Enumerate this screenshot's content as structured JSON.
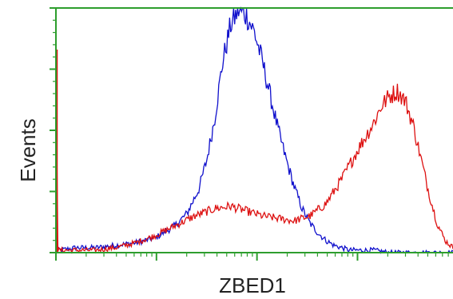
{
  "chart_data": {
    "type": "line",
    "title": "",
    "xlabel": "ZBED1",
    "ylabel": "Events",
    "x_scale": "log",
    "xlim": [
      0,
      1
    ],
    "ylim": [
      0,
      1
    ],
    "grid": false,
    "legend": "none",
    "axis_color": "#2e9e2e",
    "series": [
      {
        "color": "#1010cc",
        "x": [
          0.01,
          0.05,
          0.1,
          0.15,
          0.2,
          0.25,
          0.3,
          0.33,
          0.36,
          0.38,
          0.4,
          0.42,
          0.44,
          0.46,
          0.48,
          0.5,
          0.52,
          0.54,
          0.56,
          0.58,
          0.6,
          0.62,
          0.64,
          0.66,
          0.68,
          0.7,
          0.72,
          0.74,
          0.76,
          0.78,
          0.8,
          0.84,
          0.88,
          0.92,
          0.96,
          1.0
        ],
        "y": [
          0.01,
          0.02,
          0.02,
          0.03,
          0.04,
          0.06,
          0.11,
          0.16,
          0.26,
          0.38,
          0.55,
          0.78,
          0.93,
          0.99,
          0.97,
          0.9,
          0.78,
          0.64,
          0.5,
          0.38,
          0.27,
          0.18,
          0.12,
          0.08,
          0.05,
          0.03,
          0.02,
          0.01,
          0.01,
          0.01,
          0.01,
          0.0,
          0.0,
          0.0,
          0.0,
          0.0
        ]
      },
      {
        "color": "#dd1111",
        "x": [
          0.0,
          0.005,
          0.01,
          0.05,
          0.1,
          0.15,
          0.2,
          0.25,
          0.3,
          0.35,
          0.4,
          0.44,
          0.48,
          0.52,
          0.56,
          0.6,
          0.64,
          0.68,
          0.72,
          0.76,
          0.8,
          0.82,
          0.84,
          0.86,
          0.88,
          0.9,
          0.92,
          0.94,
          0.96,
          0.98,
          1.0
        ],
        "y": [
          0.83,
          0.01,
          0.01,
          0.01,
          0.01,
          0.02,
          0.04,
          0.07,
          0.11,
          0.15,
          0.18,
          0.19,
          0.17,
          0.15,
          0.14,
          0.13,
          0.15,
          0.2,
          0.3,
          0.42,
          0.53,
          0.6,
          0.64,
          0.66,
          0.62,
          0.52,
          0.38,
          0.24,
          0.12,
          0.05,
          0.02
        ]
      }
    ]
  }
}
